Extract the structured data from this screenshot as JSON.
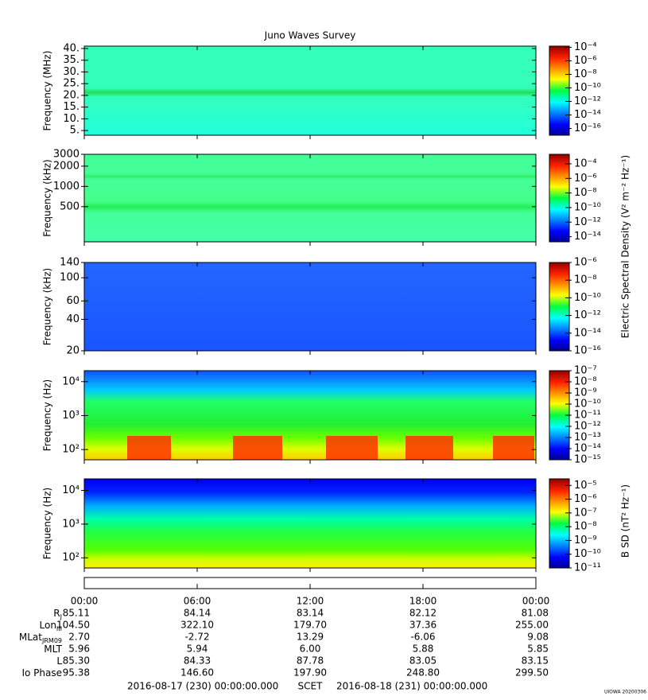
{
  "title": "Juno Waves Survey",
  "chart_data": [
    {
      "type": "spectrogram",
      "ylabel": "Frequency (MHz)",
      "yscale": "linear",
      "ylim": [
        3,
        41
      ],
      "yticks": [
        {
          "value": 5,
          "label": "5."
        },
        {
          "value": 10,
          "label": "10."
        },
        {
          "value": 15,
          "label": "15."
        },
        {
          "value": 20,
          "label": "20."
        },
        {
          "value": 25,
          "label": "25."
        },
        {
          "value": 30,
          "label": "30."
        },
        {
          "value": 35,
          "label": "35."
        },
        {
          "value": 40,
          "label": "40."
        }
      ],
      "clim": [
        1e-17,
        0.00015
      ],
      "cticks": [
        {
          "value": 0.0001,
          "label": "10⁻⁴"
        },
        {
          "value": 1e-06,
          "label": "10⁻⁶"
        },
        {
          "value": 1e-08,
          "label": "10⁻⁸"
        },
        {
          "value": 1e-10,
          "label": "10⁻¹⁰"
        },
        {
          "value": 1e-12,
          "label": "10⁻¹²"
        },
        {
          "value": 1e-14,
          "label": "10⁻¹⁴"
        },
        {
          "value": 1e-16,
          "label": "10⁻¹⁶"
        }
      ]
    },
    {
      "type": "spectrogram",
      "ylabel": "Frequency (kHz)",
      "yscale": "log",
      "ylim": [
        150,
        3000
      ],
      "yticks": [
        500,
        1000,
        2000,
        3000
      ],
      "clim": [
        2e-15,
        0.002
      ],
      "cticks": [
        {
          "value": 0.0001,
          "label": "10⁻⁴"
        },
        {
          "value": 1e-06,
          "label": "10⁻⁶"
        },
        {
          "value": 1e-08,
          "label": "10⁻⁸"
        },
        {
          "value": 1e-10,
          "label": "10⁻¹⁰"
        },
        {
          "value": 1e-12,
          "label": "10⁻¹²"
        },
        {
          "value": 1e-14,
          "label": "10⁻¹⁴"
        }
      ],
      "zlabel": "Electric Spectral Density (V² m⁻² Hz⁻¹)"
    },
    {
      "type": "spectrogram",
      "ylabel": "Frequency (kHz)",
      "yscale": "log",
      "ylim": [
        20,
        140
      ],
      "yticks": [
        20,
        40,
        60,
        100,
        140
      ],
      "clim": [
        1e-16,
        1e-06
      ],
      "cticks": [
        {
          "value": 1e-06,
          "label": "10⁻⁶"
        },
        {
          "value": 1e-08,
          "label": "10⁻⁸"
        },
        {
          "value": 1e-10,
          "label": "10⁻¹⁰"
        },
        {
          "value": 1e-12,
          "label": "10⁻¹²"
        },
        {
          "value": 1e-14,
          "label": "10⁻¹⁴"
        },
        {
          "value": 1e-16,
          "label": "10⁻¹⁶"
        }
      ]
    },
    {
      "type": "spectrogram",
      "ylabel": "Frequency (Hz)",
      "yscale": "log",
      "ylim": [
        50,
        21000
      ],
      "yticks": [
        {
          "value": 100,
          "label": "10²"
        },
        {
          "value": 1000,
          "label": "10³"
        },
        {
          "value": 10000,
          "label": "10⁴"
        }
      ],
      "clim": [
        1e-15,
        1e-07
      ],
      "cticks": [
        {
          "value": 1e-07,
          "label": "10⁻⁷"
        },
        {
          "value": 1e-08,
          "label": "10⁻⁸"
        },
        {
          "value": 1e-09,
          "label": "10⁻⁹"
        },
        {
          "value": 1e-10,
          "label": "10⁻¹⁰"
        },
        {
          "value": 1e-11,
          "label": "10⁻¹¹"
        },
        {
          "value": 1e-12,
          "label": "10⁻¹²"
        },
        {
          "value": 1e-13,
          "label": "10⁻¹³"
        },
        {
          "value": 1e-14,
          "label": "10⁻¹⁴"
        },
        {
          "value": 1e-15,
          "label": "10⁻¹⁵"
        }
      ]
    },
    {
      "type": "spectrogram",
      "ylabel": "Frequency (Hz)",
      "yscale": "log",
      "ylim": [
        50,
        22000
      ],
      "yticks": [
        {
          "value": 100,
          "label": "10²"
        },
        {
          "value": 1000,
          "label": "10³"
        },
        {
          "value": 10000,
          "label": "10⁴"
        }
      ],
      "clim": [
        1e-11,
        3e-05
      ],
      "cticks": [
        {
          "value": 1e-05,
          "label": "10⁻⁵"
        },
        {
          "value": 1e-06,
          "label": "10⁻⁶"
        },
        {
          "value": 1e-07,
          "label": "10⁻⁷"
        },
        {
          "value": 1e-08,
          "label": "10⁻⁸"
        },
        {
          "value": 1e-09,
          "label": "10⁻⁹"
        },
        {
          "value": 1e-10,
          "label": "10⁻¹⁰"
        },
        {
          "value": 1e-11,
          "label": "10⁻¹¹"
        }
      ],
      "zlabel": "B SD (nT² Hz⁻¹)"
    }
  ],
  "x_axis": {
    "xlim": [
      0,
      24
    ],
    "xticks": [
      {
        "value": 0,
        "label": "00:00"
      },
      {
        "value": 6,
        "label": "06:00"
      },
      {
        "value": 12,
        "label": "12:00"
      },
      {
        "value": 18,
        "label": "18:00"
      },
      {
        "value": 24,
        "label": "00:00"
      }
    ]
  },
  "ephemeris": {
    "rows": [
      {
        "label": "R",
        "sub": "J",
        "values": [
          "85.11",
          "84.14",
          "83.14",
          "82.12",
          "81.08"
        ]
      },
      {
        "label": "Lon",
        "sub": "III",
        "values": [
          "104.50",
          "322.10",
          "179.70",
          "37.36",
          "255.00"
        ]
      },
      {
        "label": "MLat",
        "sub": "JRM09",
        "values": [
          "2.70",
          "-2.72",
          "13.29",
          "-6.06",
          "9.08"
        ]
      },
      {
        "label": "MLT",
        "values": [
          "5.96",
          "5.94",
          "6.00",
          "5.88",
          "5.85"
        ]
      },
      {
        "label": "L",
        "values": [
          "85.30",
          "84.33",
          "87.78",
          "83.05",
          "83.15"
        ]
      },
      {
        "label": "Io Phase",
        "values": [
          "95.38",
          "146.60",
          "197.90",
          "248.80",
          "299.50"
        ]
      }
    ]
  },
  "footer": {
    "start": "2016-08-17 (230) 00:00:00.000",
    "frame": "SCET",
    "end": "2016-08-18 (231) 00:00:00.000"
  },
  "stamp": "UIOWA 20200306"
}
